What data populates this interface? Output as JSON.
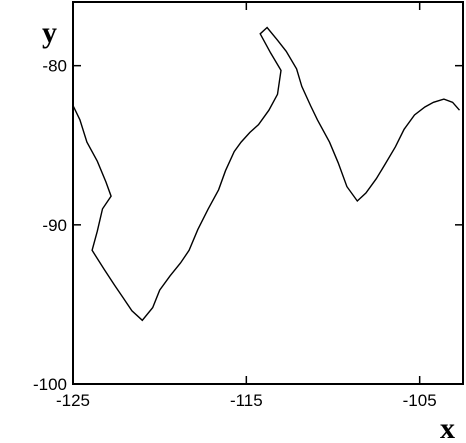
{
  "chart_data": {
    "type": "line",
    "xlabel": "x",
    "ylabel": "y",
    "xlim": [
      -125,
      -102.5
    ],
    "ylim": [
      -100,
      -76
    ],
    "xticks": [
      -125,
      -115,
      -105
    ],
    "yticks": [
      -80,
      -90,
      -100
    ],
    "xtick_labels": [
      "-125",
      "-115",
      "-105"
    ],
    "ytick_labels": [
      "-80",
      "-90",
      "-100"
    ],
    "grid": false,
    "legend": "none",
    "line_color": "#000000",
    "series": [
      {
        "x": [
          -125,
          -124.6,
          -124.2,
          -123.6,
          -123.1,
          -122.8,
          -123.3,
          -123.6,
          -123.9,
          -123.2,
          -122.6,
          -122.1,
          -121.6,
          -121.0,
          -120.4,
          -120.0,
          -119.4,
          -118.8,
          -118.3,
          -117.8,
          -117.2,
          -116.6,
          -116.2,
          -115.7,
          -115.3,
          -114.8,
          -114.3,
          -113.7,
          -113.2,
          -113.0,
          -113.6,
          -114.2,
          -113.8,
          -113.2,
          -112.7,
          -112.1,
          -111.8,
          -111.3,
          -110.9,
          -110.2,
          -109.7,
          -109.2,
          -108.6,
          -108.1,
          -107.5,
          -107.0,
          -106.4,
          -105.9,
          -105.3,
          -104.7,
          -104.2,
          -103.6,
          -103.1,
          -102.7
        ],
        "y": [
          -82.5,
          -83.4,
          -84.8,
          -86.0,
          -87.3,
          -88.2,
          -89.0,
          -90.4,
          -91.6,
          -92.8,
          -93.8,
          -94.6,
          -95.4,
          -96.0,
          -95.2,
          -94.1,
          -93.2,
          -92.4,
          -91.6,
          -90.3,
          -89.0,
          -87.8,
          -86.6,
          -85.4,
          -84.8,
          -84.2,
          -83.7,
          -82.8,
          -81.8,
          -80.3,
          -79.2,
          -78.0,
          -77.6,
          -78.4,
          -79.1,
          -80.2,
          -81.3,
          -82.5,
          -83.4,
          -84.8,
          -86.1,
          -87.6,
          -88.5,
          -88.0,
          -87.1,
          -86.2,
          -85.1,
          -84.0,
          -83.1,
          -82.6,
          -82.3,
          -82.1,
          -82.3,
          -82.8
        ]
      }
    ]
  }
}
